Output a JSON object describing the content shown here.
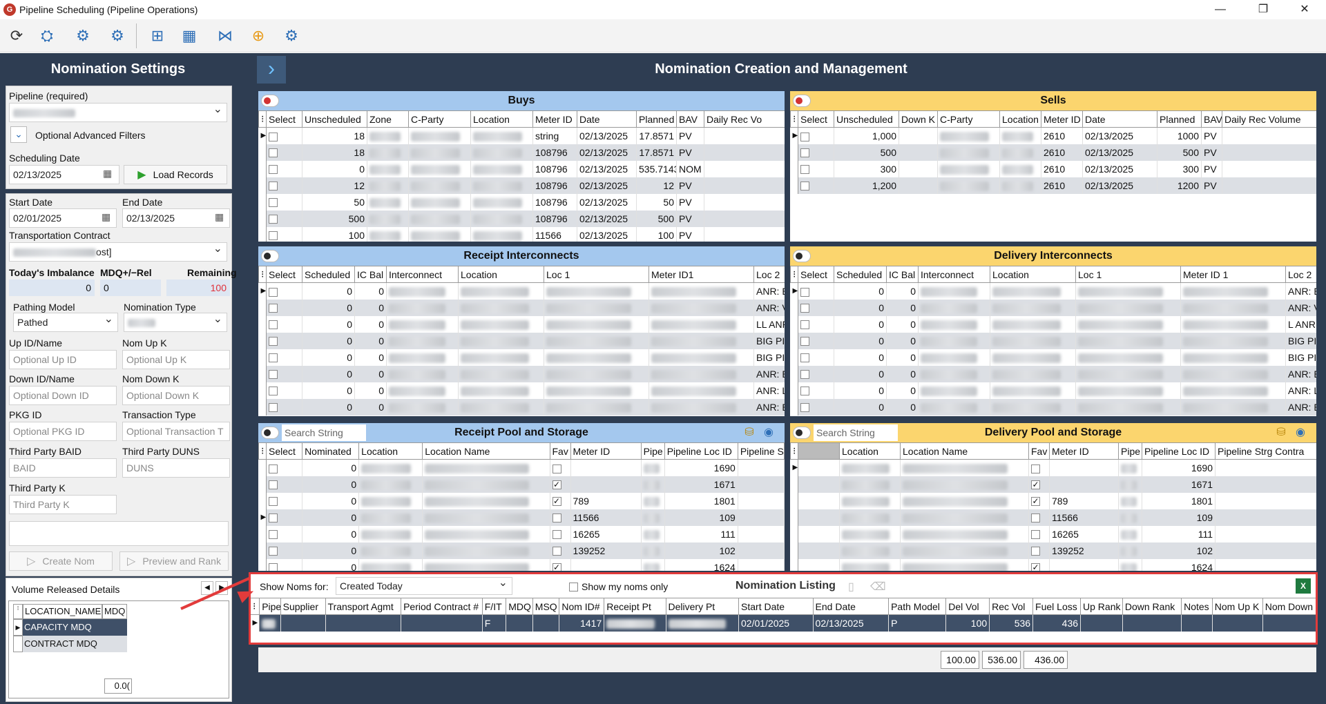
{
  "window": {
    "title": "Pipeline Scheduling (Pipeline Operations)",
    "app_icon": "G",
    "minimize": "—",
    "maximize": "❐",
    "close": "✕"
  },
  "toolbar": {
    "icons": [
      "refresh-icon",
      "p2l-icon",
      "pipe-tool-icon",
      "pipe-settings-icon",
      "pipe-add-icon",
      "pipe-calendar-icon",
      "network-icon",
      "calculator-icon",
      "pipe-export-icon"
    ]
  },
  "settings": {
    "title": "Nomination Settings",
    "pipeline_label": "Pipeline (required)",
    "advanced_filters": "Optional Advanced Filters",
    "scheduling_date_label": "Scheduling Date",
    "scheduling_date": "02/13/2025",
    "load_records": "Load Records",
    "start_date_label": "Start Date",
    "start_date": "02/01/2025",
    "end_date_label": "End Date",
    "end_date": "02/13/2025",
    "transport_contract_label": "Transportation Contract",
    "transport_contract_value": "ost]",
    "imbalance_label": "Today's Imbalance",
    "imbalance": "0",
    "mdq_label": "MDQ+/−Rel",
    "mdq": "0",
    "remaining_label": "Remaining",
    "remaining": "100",
    "pathing_model_label": "Pathing Model",
    "pathing_model": "Pathed",
    "nom_type_label": "Nomination Type",
    "up_id_label": "Up ID/Name",
    "up_id_ph": "Optional Up ID",
    "nom_up_k_label": "Nom Up K",
    "nom_up_k_ph": "Optional Up K",
    "down_id_label": "Down ID/Name",
    "down_id_ph": "Optional Down ID",
    "nom_down_k_label": "Nom Down K",
    "nom_down_k_ph": "Optional Down K",
    "pkg_id_label": "PKG ID",
    "pkg_id_ph": "Optional PKG ID",
    "trans_type_label": "Transaction Type",
    "trans_type_ph": "Optional Transaction T",
    "baid_label": "Third Party BAID",
    "baid_ph": "BAID",
    "duns_label": "Third Party DUNS",
    "duns_ph": "DUNS",
    "tpk_label": "Third Party K",
    "tpk_ph": "Third Party K",
    "create_nom": "Create Nom",
    "preview_rank": "Preview and Rank"
  },
  "volume": {
    "title": "Volume Released Details",
    "headers": [
      "LOCATION_NAME",
      "MDQ"
    ],
    "rows": [
      "CAPACITY MDQ",
      "CONTRACT MDQ"
    ],
    "total": "0.0("
  },
  "main_title": "Nomination Creation and Management",
  "buys": {
    "title": "Buys",
    "headers": [
      "Select",
      "Unscheduled",
      "Zone",
      "C-Party",
      "Location",
      "Meter ID",
      "Date",
      "Planned",
      "BAV",
      "Daily Rec Vo"
    ],
    "rows": [
      {
        "u": "18",
        "m": "string",
        "d": "02/13/2025",
        "p": "17.8571",
        "b": "PV"
      },
      {
        "u": "18",
        "m": "108796",
        "d": "02/13/2025",
        "p": "17.8571",
        "b": "PV"
      },
      {
        "u": "0",
        "m": "108796",
        "d": "02/13/2025",
        "p": "535.7143",
        "b": "NOM"
      },
      {
        "u": "12",
        "m": "108796",
        "d": "02/13/2025",
        "p": "12",
        "b": "PV"
      },
      {
        "u": "50",
        "m": "108796",
        "d": "02/13/2025",
        "p": "50",
        "b": "PV"
      },
      {
        "u": "500",
        "m": "108796",
        "d": "02/13/2025",
        "p": "500",
        "b": "PV"
      },
      {
        "u": "100",
        "m": "11566",
        "d": "02/13/2025",
        "p": "100",
        "b": "PV"
      }
    ]
  },
  "sells": {
    "title": "Sells",
    "headers": [
      "Select",
      "Unscheduled",
      "Down K",
      "C-Party",
      "Location",
      "Meter ID",
      "Date",
      "Planned",
      "BAV",
      "Daily Rec Volume"
    ],
    "rows": [
      {
        "u": "1,000",
        "m": "2610",
        "d": "02/13/2025",
        "p": "1000",
        "b": "PV"
      },
      {
        "u": "500",
        "m": "2610",
        "d": "02/13/2025",
        "p": "500",
        "b": "PV"
      },
      {
        "u": "300",
        "m": "2610",
        "d": "02/13/2025",
        "p": "300",
        "b": "PV"
      },
      {
        "u": "1,200",
        "m": "2610",
        "d": "02/13/2025",
        "p": "1200",
        "b": "PV"
      }
    ]
  },
  "receipt_ic": {
    "title": "Receipt Interconnects",
    "headers": [
      "Select",
      "Scheduled",
      "IC Bal",
      "Interconnect",
      "Location",
      "Loc 1",
      "Meter ID1",
      "Loc 2"
    ],
    "loc2": [
      "ANR: E",
      "ANR: V",
      "LL ANR: V",
      "BIG PI",
      "BIG PI",
      "ANR: E",
      "ANR: L",
      "ANR: E"
    ]
  },
  "delivery_ic": {
    "title": "Delivery Interconnects",
    "headers": [
      "Select",
      "Scheduled",
      "IC Bal",
      "Interconnect",
      "Location",
      "Loc 1",
      "Meter ID 1",
      "Loc 2"
    ],
    "loc2": [
      "ANR: E",
      "ANR: V",
      "L ANR: V",
      "BIG PI",
      "BIG PI",
      "ANR: E",
      "ANR: L",
      "ANR: E"
    ]
  },
  "receipt_pool": {
    "title": "Receipt Pool and Storage",
    "search": "Search String",
    "headers": [
      "Select",
      "Nominated",
      "Location",
      "Location Name",
      "Fav",
      "Meter ID",
      "Pipe",
      "Pipeline Loc ID",
      "Pipeline S"
    ],
    "rows": [
      {
        "n": "0",
        "fav": false,
        "m": "",
        "pl": "1690"
      },
      {
        "n": "0",
        "fav": true,
        "m": "",
        "pl": "1671"
      },
      {
        "n": "0",
        "fav": true,
        "m": "789",
        "pl": "1801"
      },
      {
        "n": "0",
        "fav": false,
        "m": "11566",
        "pl": "109"
      },
      {
        "n": "0",
        "fav": false,
        "m": "16265",
        "pl": "111"
      },
      {
        "n": "0",
        "fav": false,
        "m": "139252",
        "pl": "102"
      },
      {
        "n": "0",
        "fav": true,
        "m": "",
        "pl": "1624"
      }
    ]
  },
  "delivery_pool": {
    "title": "Delivery Pool and Storage",
    "search": "Search String",
    "headers": [
      "",
      "Location",
      "Location Name",
      "Fav",
      "Meter ID",
      "Pipe",
      "Pipeline Loc ID",
      "Pipeline Strg Contra"
    ],
    "rows": [
      {
        "fav": false,
        "m": "",
        "pl": "1690"
      },
      {
        "fav": true,
        "m": "",
        "pl": "1671"
      },
      {
        "fav": true,
        "m": "789",
        "pl": "1801"
      },
      {
        "fav": false,
        "m": "11566",
        "pl": "109"
      },
      {
        "fav": false,
        "m": "16265",
        "pl": "111"
      },
      {
        "fav": false,
        "m": "139252",
        "pl": "102"
      },
      {
        "fav": true,
        "m": "",
        "pl": "1624"
      }
    ]
  },
  "listing": {
    "show_noms_for_label": "Show Noms for:",
    "show_noms_for": "Created Today",
    "my_noms": "Show my noms only",
    "title": "Nomination Listing",
    "headers": [
      "Pipe",
      "Supplier",
      "Transport Agmt",
      "Period Contract #",
      "F/IT",
      "MDQ",
      "MSQ",
      "Nom ID#",
      "Receipt Pt",
      "Delivery Pt",
      "Start Date",
      "End Date",
      "Path Model",
      "Del Vol",
      "Rec Vol",
      "Fuel Loss",
      "Up Rank",
      "Down Rank",
      "Notes",
      "Nom Up K",
      "Nom Down K"
    ],
    "row": {
      "fit": "F",
      "nom_id": "1417",
      "start": "02/01/2025",
      "end": "02/13/2025",
      "path": "P",
      "del": "100",
      "rec": "536",
      "fuel": "436"
    },
    "totals": [
      "100.00",
      "536.00",
      "436.00"
    ]
  },
  "colors": {
    "navy": "#2e3d52",
    "blue_header": "#a4c8ee",
    "yellow_header": "#fbd56e",
    "highlight": "#e23b3b",
    "selected_row": "#3f5068"
  }
}
